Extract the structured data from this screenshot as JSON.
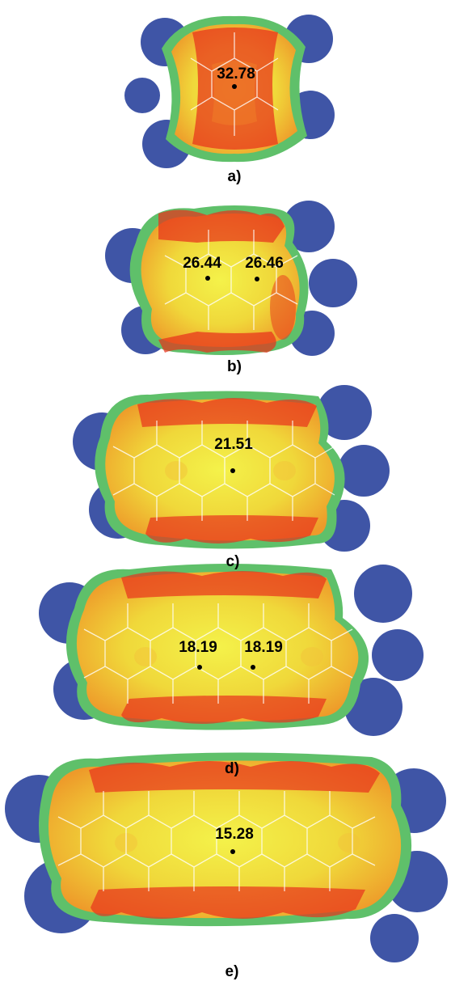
{
  "colors": {
    "negative_lobe": "#3f55a6",
    "rim": "#5fc06a",
    "surface_yellow": "#eef03a",
    "surface_orange": "#f2a12a",
    "surface_red": "#e8321c",
    "bond": "#ffffff",
    "center_dot": "#000000"
  },
  "panels": [
    {
      "label": "a)",
      "values": [
        "32.78"
      ],
      "rings": 2
    },
    {
      "label": "b)",
      "values": [
        "26.44",
        "26.46"
      ],
      "rings": 3
    },
    {
      "label": "c)",
      "values": [
        "21.51"
      ],
      "rings": 4
    },
    {
      "label": "d)",
      "values": [
        "18.19",
        "18.19"
      ],
      "rings": 5
    },
    {
      "label": "e)",
      "values": [
        "15.28"
      ],
      "rings": 6
    }
  ]
}
